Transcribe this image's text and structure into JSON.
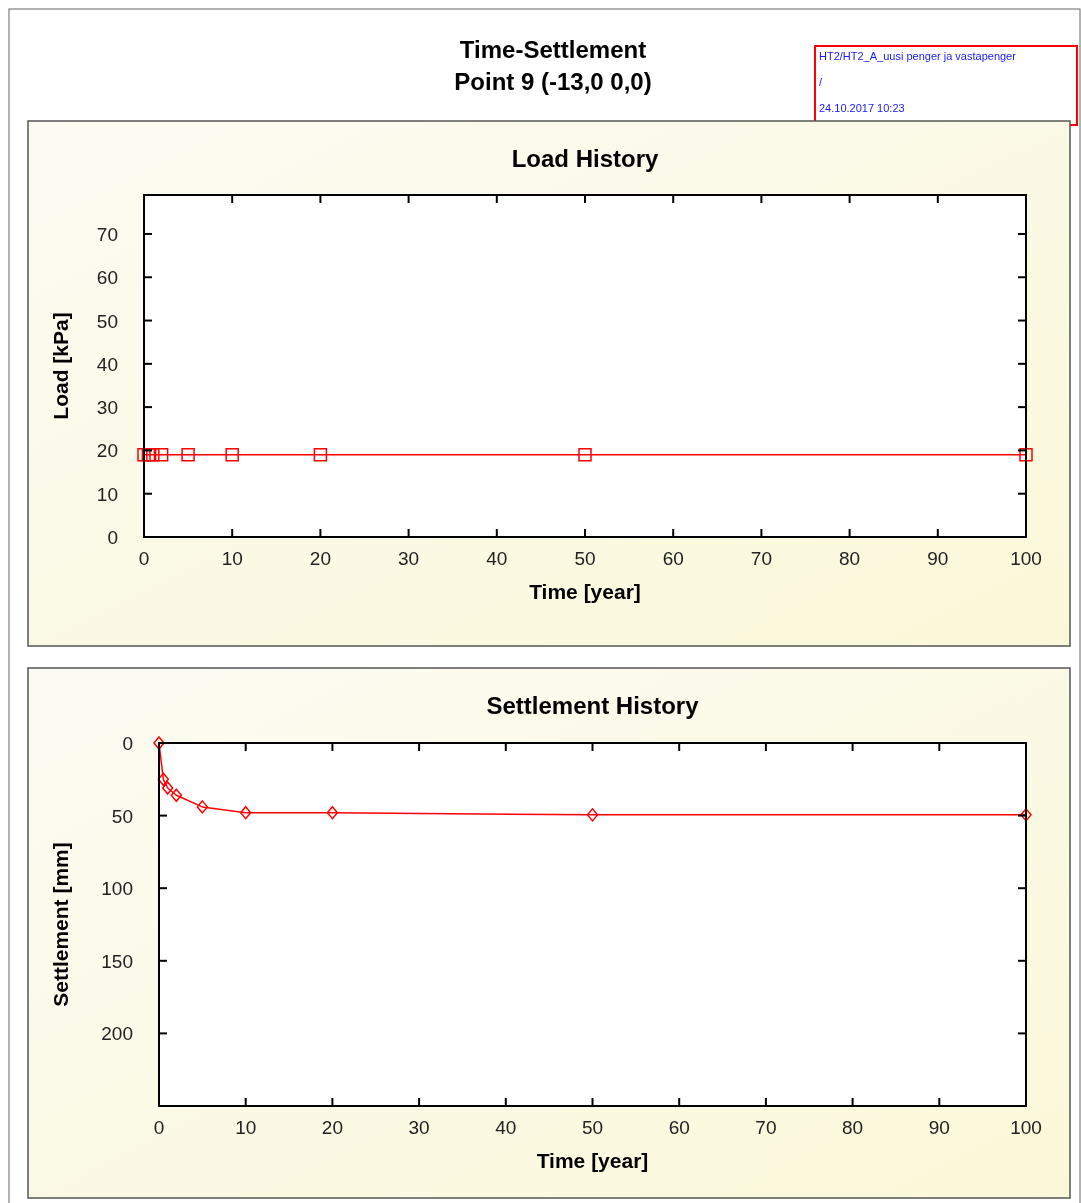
{
  "chart_data": [
    {
      "type": "line",
      "title": "Load History",
      "xlabel": "Time [year]",
      "ylabel": "Load [kPa]",
      "annotations": [
        "Time-Settlement",
        "Point 9 (-13,0 0,0)",
        "HT2/HT2_A_uusi penger ja vastapenger",
        "/",
        "24.10.2017 10:23"
      ],
      "x": [
        0,
        0.5,
        1,
        2,
        5,
        10,
        20,
        50,
        100
      ],
      "series": [
        {
          "color": "#ff0000",
          "values": [
            19,
            19,
            19,
            19,
            19,
            19,
            19,
            19,
            19
          ]
        }
      ],
      "marker": "square",
      "xlim": [
        0,
        100
      ],
      "xticks": [
        0,
        10,
        20,
        30,
        40,
        50,
        60,
        70,
        80,
        90,
        100
      ],
      "ylim": [
        0,
        79
      ],
      "yticks": [
        0,
        10,
        20,
        30,
        40,
        50,
        60,
        70
      ],
      "grid": false
    },
    {
      "type": "line",
      "title": "Settlement History",
      "xlabel": "Time [year]",
      "ylabel": "Settlement [mm]",
      "x": [
        0,
        0.5,
        1,
        2,
        5,
        10,
        20,
        50,
        100
      ],
      "series": [
        {
          "color": "#ff0000",
          "values": [
            0,
            25,
            31,
            36,
            44,
            48,
            48,
            49.5,
            49.5
          ]
        }
      ],
      "marker": "diamond",
      "xlim": [
        0,
        100
      ],
      "xticks": [
        0,
        10,
        20,
        30,
        40,
        50,
        60,
        70,
        80,
        90,
        100
      ],
      "ylim": [
        250,
        0
      ],
      "yticks": [
        0,
        50,
        100,
        150,
        200
      ],
      "grid": false
    }
  ]
}
